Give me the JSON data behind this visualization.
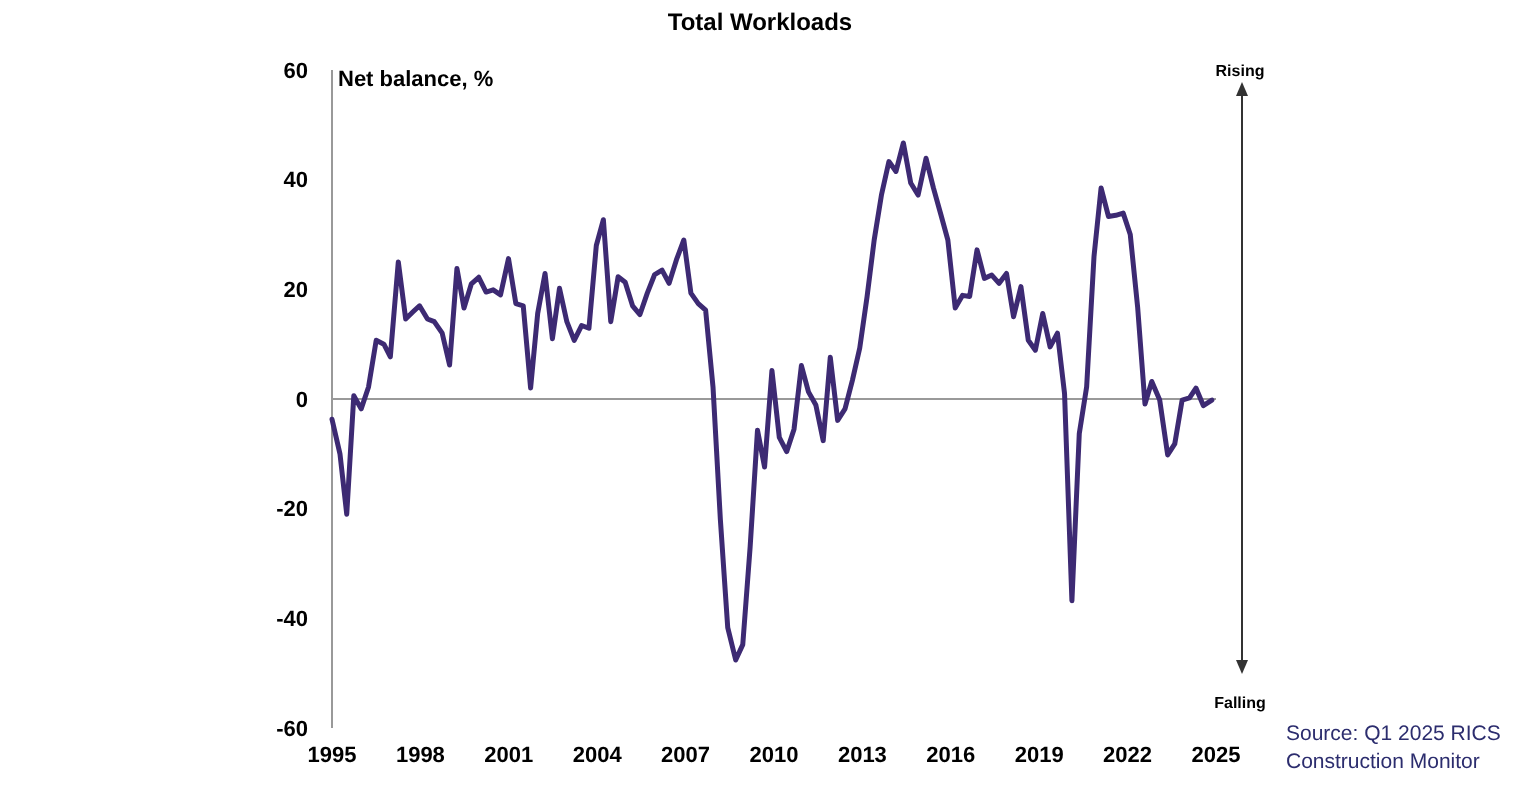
{
  "chart_data": {
    "type": "line",
    "title": "Total Workloads",
    "ylabel": "Net balance, %",
    "annotations": [
      "Rising",
      "Falling",
      "Source: Q1 2025 RICS Construction Monitor"
    ],
    "xlim": [
      1995,
      2025
    ],
    "xticks": [
      1995,
      1998,
      2001,
      2004,
      2007,
      2010,
      2013,
      2016,
      2019,
      2022,
      2025
    ],
    "ylim": [
      -60,
      60
    ],
    "yticks": [
      -60,
      -40,
      -20,
      0,
      20,
      40,
      60
    ],
    "ref_lines": [
      {
        "axis": "y",
        "value": 0,
        "color": "#999999"
      }
    ],
    "grid": false,
    "marker": "none",
    "line_style": "solid",
    "series": [
      {
        "color": "#3d2a73",
        "x": [
          1995.0,
          1995.27,
          1995.5,
          1995.74,
          1995.99,
          1996.24,
          1996.5,
          1996.76,
          1996.98,
          1997.25,
          1997.5,
          1997.75,
          1997.97,
          1998.24,
          1998.47,
          1998.74,
          1998.99,
          1999.24,
          1999.48,
          1999.73,
          1999.98,
          2000.23,
          2000.47,
          2000.72,
          2000.99,
          2001.24,
          2001.49,
          2001.74,
          2001.98,
          2002.23,
          2002.48,
          2002.72,
          2002.97,
          2003.22,
          2003.47,
          2003.72,
          2003.97,
          2004.21,
          2004.46,
          2004.71,
          2004.95,
          2005.2,
          2005.45,
          2005.7,
          2005.95,
          2006.2,
          2006.44,
          2006.69,
          2006.94,
          2007.18,
          2007.43,
          2007.68,
          2007.93,
          2008.18,
          2008.43,
          2008.7,
          2008.94,
          2009.19,
          2009.44,
          2009.68,
          2009.93,
          2010.18,
          2010.43,
          2010.68,
          2010.93,
          2011.17,
          2011.42,
          2011.67,
          2011.91,
          2012.16,
          2012.41,
          2012.66,
          2012.91,
          2013.16,
          2013.4,
          2013.65,
          2013.9,
          2014.14,
          2014.39,
          2014.64,
          2014.89,
          2015.16,
          2015.41,
          2015.66,
          2015.9,
          2016.15,
          2016.4,
          2016.64,
          2016.89,
          2017.14,
          2017.39,
          2017.64,
          2017.89,
          2018.13,
          2018.38,
          2018.63,
          2018.87,
          2019.12,
          2019.37,
          2019.62,
          2019.86,
          2020.11,
          2020.36,
          2020.61,
          2020.86,
          2021.1,
          2021.35,
          2021.6,
          2021.85,
          2022.09,
          2022.34,
          2022.59,
          2022.82,
          2023.09,
          2023.36,
          2023.6,
          2023.85,
          2024.1,
          2024.32,
          2024.57,
          2024.86
        ],
        "values": [
          -3.7,
          -10,
          -21,
          0.6,
          -1.8,
          2.2,
          10.7,
          10,
          7.7,
          25,
          14.6,
          15.9,
          17,
          14.6,
          14.1,
          12,
          6.2,
          23.8,
          16.6,
          21,
          22.2,
          19.5,
          19.9,
          19,
          25.6,
          17.4,
          17,
          2,
          15.6,
          22.9,
          11,
          20.2,
          14.1,
          10.7,
          13.4,
          12.9,
          28,
          32.7,
          14.1,
          22.3,
          21.3,
          17,
          15.4,
          19.3,
          22.7,
          23.5,
          21.1,
          25.4,
          29,
          19.3,
          17.4,
          16.2,
          2.2,
          -22,
          -41.7,
          -47.6,
          -44.8,
          -27,
          -5.7,
          -12.4,
          5.2,
          -7,
          -9.6,
          -5.5,
          6.1,
          1.3,
          -1.1,
          -7.6,
          7.6,
          -3.9,
          -1.8,
          3.4,
          9.3,
          18.7,
          29,
          37.3,
          43.3,
          41.5,
          46.7,
          39.4,
          37.2,
          43.9,
          38.5,
          33.7,
          29,
          16.6,
          18.9,
          18.7,
          27.2,
          22,
          22.6,
          21.1,
          22.9,
          15,
          20.5,
          10.7,
          8.9,
          15.6,
          9.5,
          12,
          1,
          -36.8,
          -6.3,
          2.2,
          26,
          38.5,
          33.3,
          33.5,
          33.9,
          30,
          16.8,
          -0.9,
          3.2,
          -0.2,
          -10.2,
          -8.2,
          -0.2,
          0.2,
          2,
          -1.2,
          -0.2
        ]
      }
    ]
  }
}
